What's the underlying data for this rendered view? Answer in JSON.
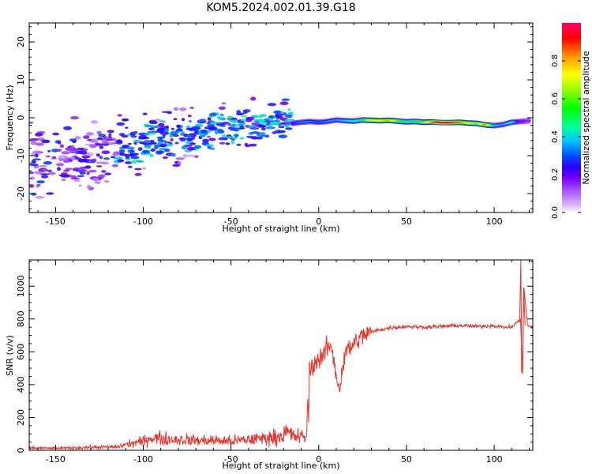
{
  "title": "KOM5.2024.002.01.39.G18",
  "chart_data": [
    {
      "type": "heatmap",
      "xlabel": "Height of straight line (km)",
      "ylabel": "Frequency (Hz)",
      "xlim": [
        -165,
        122
      ],
      "ylim": [
        -25,
        25
      ],
      "x_ticks": [
        -150,
        -100,
        -50,
        0,
        50,
        100
      ],
      "y_ticks": [
        -20,
        -10,
        0,
        10,
        20
      ],
      "colorbar": {
        "label": "Normalized spectral amplitude",
        "range": [
          0,
          1
        ],
        "ticks": [
          0.0,
          0.2,
          0.4,
          0.6,
          0.8
        ],
        "colors": [
          "#ffffff",
          "#d9b3ff",
          "#b266ff",
          "#7a00ff",
          "#2a00ff",
          "#0050ff",
          "#00c8ff",
          "#00ff9a",
          "#00ff00",
          "#9aff00",
          "#ffff00",
          "#ff9a00",
          "#ff0000",
          "#ff0066"
        ]
      },
      "ridge": {
        "x": [
          -15,
          -10,
          -5,
          0,
          5,
          10,
          15,
          20,
          25,
          30,
          35,
          40,
          45,
          50,
          55,
          60,
          65,
          70,
          75,
          80,
          85,
          90,
          95,
          100,
          105,
          110,
          115,
          120
        ],
        "frequency": [
          -1.5,
          -1.2,
          -1.0,
          -1.2,
          -1.0,
          -0.6,
          -0.8,
          -0.9,
          -0.6,
          -0.7,
          -0.8,
          -0.7,
          -0.9,
          -1.1,
          -1.0,
          -1.2,
          -1.1,
          -1.3,
          -1.3,
          -1.2,
          -1.4,
          -1.5,
          -1.9,
          -2.1,
          -1.8,
          -1.2,
          -1.0,
          -0.8
        ],
        "amplitude": [
          0.25,
          0.35,
          0.35,
          0.3,
          0.35,
          0.35,
          0.4,
          0.45,
          0.5,
          0.75,
          0.75,
          0.8,
          0.6,
          0.5,
          0.55,
          0.6,
          0.85,
          0.95,
          0.9,
          0.85,
          0.75,
          0.6,
          0.85,
          0.4,
          0.35,
          0.45,
          0.2,
          0.15
        ]
      },
      "scatter_region": {
        "x_range": [
          -165,
          -15
        ],
        "frequency_trend_start": -12,
        "frequency_trend_end": 0,
        "typical_amplitude": [
          0.05,
          0.3
        ]
      }
    },
    {
      "type": "line",
      "xlabel": "Height of straight line (km)",
      "ylabel": "SNR (v/v)",
      "xlim": [
        -165,
        122
      ],
      "ylim": [
        0,
        1160
      ],
      "x_ticks": [
        -150,
        -100,
        -50,
        0,
        50,
        100
      ],
      "y_ticks": [
        0,
        200,
        400,
        600,
        800,
        1000
      ],
      "color": "#e8322a",
      "series": [
        {
          "x": [
            -165,
            -150,
            -130,
            -115,
            -110,
            -100,
            -95,
            -90,
            -80,
            -70,
            -60,
            -50,
            -40,
            -30,
            -25,
            -20,
            -18,
            -15,
            -10,
            -7,
            -5,
            -3,
            0,
            3,
            5,
            8,
            10,
            12,
            15,
            18,
            20,
            25,
            30,
            35,
            40,
            50,
            60,
            70,
            80,
            90,
            100,
            105,
            110,
            113,
            115,
            116,
            117,
            119,
            122
          ],
          "values": [
            15,
            12,
            18,
            20,
            35,
            55,
            80,
            70,
            65,
            60,
            60,
            55,
            65,
            75,
            80,
            95,
            110,
            90,
            80,
            85,
            480,
            520,
            560,
            580,
            640,
            600,
            450,
            380,
            600,
            620,
            650,
            700,
            720,
            735,
            745,
            755,
            750,
            755,
            760,
            755,
            760,
            750,
            750,
            780,
            800,
            480,
            990,
            760,
            750
          ]
        }
      ]
    }
  ]
}
